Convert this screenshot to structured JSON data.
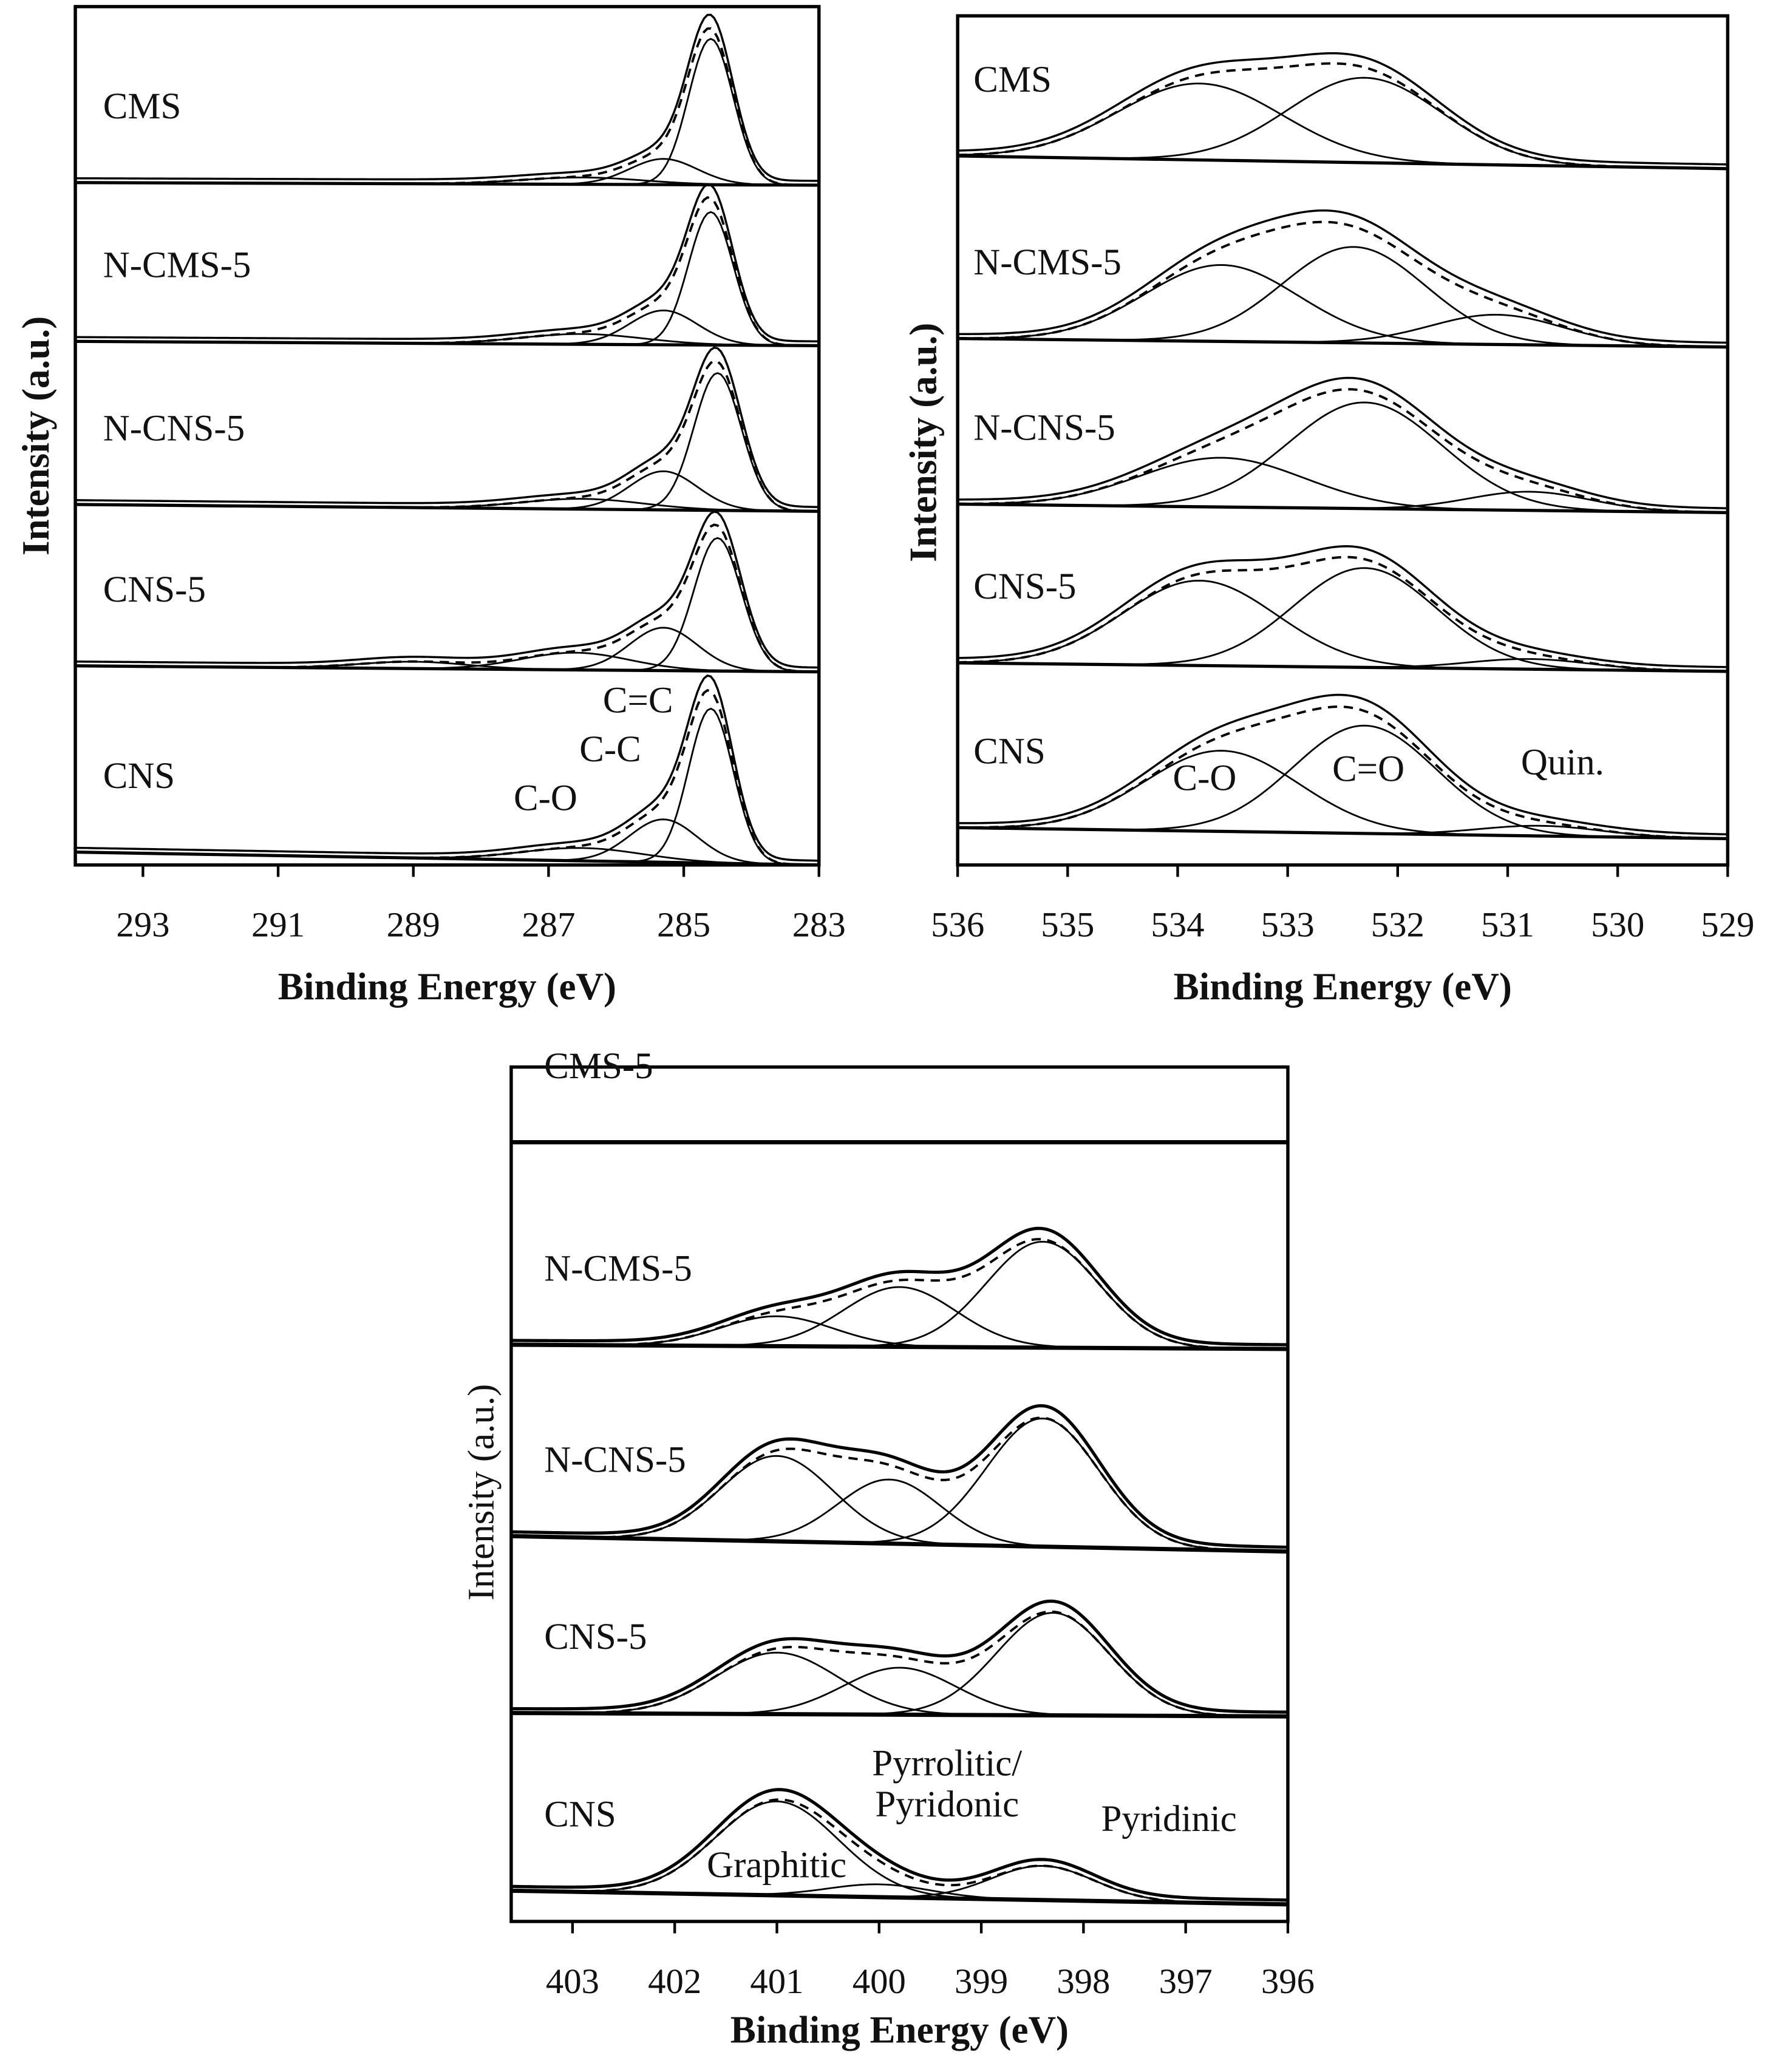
{
  "chart_data": [
    {
      "type": "xps",
      "xlabel": "Binding Energy (eV)",
      "ylabel": "Intensity (a.u.)",
      "xlim": [
        294,
        283
      ],
      "xticks": [
        293,
        291,
        289,
        287,
        285,
        283
      ],
      "ylim": [
        0,
        10
      ],
      "samples": [
        {
          "name": "CMS",
          "baseline": [
            7.95,
            7.92
          ],
          "peaks": [
            {
              "center": 284.6,
              "height": 1.7,
              "width": 0.33
            },
            {
              "center": 285.3,
              "height": 0.3,
              "width": 0.5
            },
            {
              "center": 286.5,
              "height": 0.08,
              "width": 0.9
            }
          ]
        },
        {
          "name": "N-CMS-5",
          "baseline": [
            6.1,
            6.05
          ],
          "peaks": [
            {
              "center": 284.6,
              "height": 1.55,
              "width": 0.33
            },
            {
              "center": 285.3,
              "height": 0.4,
              "width": 0.5
            },
            {
              "center": 286.5,
              "height": 0.12,
              "width": 0.9
            }
          ]
        },
        {
          "name": "N-CNS-5",
          "baseline": [
            4.2,
            4.12
          ],
          "peaks": [
            {
              "center": 284.5,
              "height": 1.6,
              "width": 0.35
            },
            {
              "center": 285.3,
              "height": 0.45,
              "width": 0.5
            },
            {
              "center": 286.5,
              "height": 0.12,
              "width": 0.9
            }
          ]
        },
        {
          "name": "CNS-5",
          "baseline": [
            2.32,
            2.25
          ],
          "peaks": [
            {
              "center": 284.5,
              "height": 1.55,
              "width": 0.35
            },
            {
              "center": 285.3,
              "height": 0.5,
              "width": 0.5
            },
            {
              "center": 286.6,
              "height": 0.2,
              "width": 0.8
            },
            {
              "center": 289,
              "height": 0.08,
              "width": 0.8
            }
          ]
        },
        {
          "name": "CNS",
          "baseline": [
            0.15,
            0.0
          ],
          "peaks": [
            {
              "center": 284.6,
              "height": 1.8,
              "width": 0.33
            },
            {
              "center": 285.3,
              "height": 0.5,
              "width": 0.5
            },
            {
              "center": 286.5,
              "height": 0.15,
              "width": 0.9
            }
          ]
        }
      ],
      "annotations": [
        "C=C",
        "C-C",
        "C-O"
      ]
    },
    {
      "type": "xps",
      "xlabel": "Binding Energy (eV)",
      "ylabel": "Intensity (a.u.)",
      "xlim": [
        536,
        529
      ],
      "xticks": [
        536,
        535,
        534,
        533,
        532,
        531,
        530,
        529
      ],
      "ylim": [
        0,
        10
      ],
      "samples": [
        {
          "name": "CMS",
          "baseline": [
            8.35,
            8.2
          ],
          "peaks": [
            {
              "center": 533.8,
              "height": 0.9,
              "width": 0.75
            },
            {
              "center": 532.3,
              "height": 1.0,
              "width": 0.7
            }
          ]
        },
        {
          "name": "N-CMS-5",
          "baseline": [
            6.2,
            6.1
          ],
          "peaks": [
            {
              "center": 533.6,
              "height": 0.9,
              "width": 0.7
            },
            {
              "center": 532.4,
              "height": 1.13,
              "width": 0.65
            },
            {
              "center": 531.1,
              "height": 0.35,
              "width": 0.6
            }
          ]
        },
        {
          "name": "N-CNS-5",
          "baseline": [
            4.25,
            4.15
          ],
          "peaks": [
            {
              "center": 533.6,
              "height": 0.58,
              "width": 0.75
            },
            {
              "center": 532.3,
              "height": 1.25,
              "width": 0.7
            },
            {
              "center": 530.8,
              "height": 0.22,
              "width": 0.55
            }
          ]
        },
        {
          "name": "CNS-5",
          "baseline": [
            2.38,
            2.28
          ],
          "peaks": [
            {
              "center": 533.8,
              "height": 1.0,
              "width": 0.7
            },
            {
              "center": 532.3,
              "height": 1.17,
              "width": 0.65
            },
            {
              "center": 530.8,
              "height": 0.12,
              "width": 0.55
            }
          ]
        },
        {
          "name": "CNS",
          "baseline": [
            0.44,
            0.31
          ],
          "peaks": [
            {
              "center": 533.6,
              "height": 0.95,
              "width": 0.7
            },
            {
              "center": 532.3,
              "height": 1.27,
              "width": 0.65
            },
            {
              "center": 530.7,
              "height": 0.12,
              "width": 0.55
            }
          ]
        }
      ],
      "annotations": [
        "C-O",
        "C=O",
        "Quin."
      ]
    },
    {
      "type": "xps",
      "xlabel": "Binding Energy (eV)",
      "ylabel": "Intensity (a.u.)",
      "xlim": [
        403.6,
        396
      ],
      "xticks": [
        403,
        402,
        401,
        400,
        399,
        398,
        397,
        396
      ],
      "ylim": [
        0,
        10
      ],
      "samples": [
        {
          "name": "CMS-5",
          "baseline": [
            9.12,
            9.12
          ],
          "peaks": []
        },
        {
          "name": "N-CMS-5",
          "baseline": [
            6.75,
            6.7
          ],
          "peaks": [
            {
              "center": 401,
              "height": 0.35,
              "width": 0.55
            },
            {
              "center": 399.8,
              "height": 0.7,
              "width": 0.55
            },
            {
              "center": 398.4,
              "height": 1.24,
              "width": 0.55
            }
          ]
        },
        {
          "name": "N-CNS-5",
          "baseline": [
            4.51,
            4.33
          ],
          "peaks": [
            {
              "center": 401,
              "height": 1.0,
              "width": 0.55
            },
            {
              "center": 399.9,
              "height": 0.75,
              "width": 0.5
            },
            {
              "center": 398.4,
              "height": 1.5,
              "width": 0.55
            }
          ]
        },
        {
          "name": "CNS-5",
          "baseline": [
            2.44,
            2.4
          ],
          "peaks": [
            {
              "center": 401,
              "height": 0.72,
              "width": 0.6
            },
            {
              "center": 399.8,
              "height": 0.55,
              "width": 0.55
            },
            {
              "center": 398.3,
              "height": 1.2,
              "width": 0.55
            }
          ]
        },
        {
          "name": "CNS",
          "baseline": [
            0.36,
            0.2
          ],
          "peaks": [
            {
              "center": 401,
              "height": 1.1,
              "width": 0.6
            },
            {
              "center": 400,
              "height": 0.15,
              "width": 0.5
            },
            {
              "center": 398.4,
              "height": 0.4,
              "width": 0.5
            }
          ]
        }
      ],
      "annotations": [
        "Pyrrolitic/",
        "Pyridonic",
        "Graphitic",
        "Pyridinic"
      ]
    }
  ]
}
